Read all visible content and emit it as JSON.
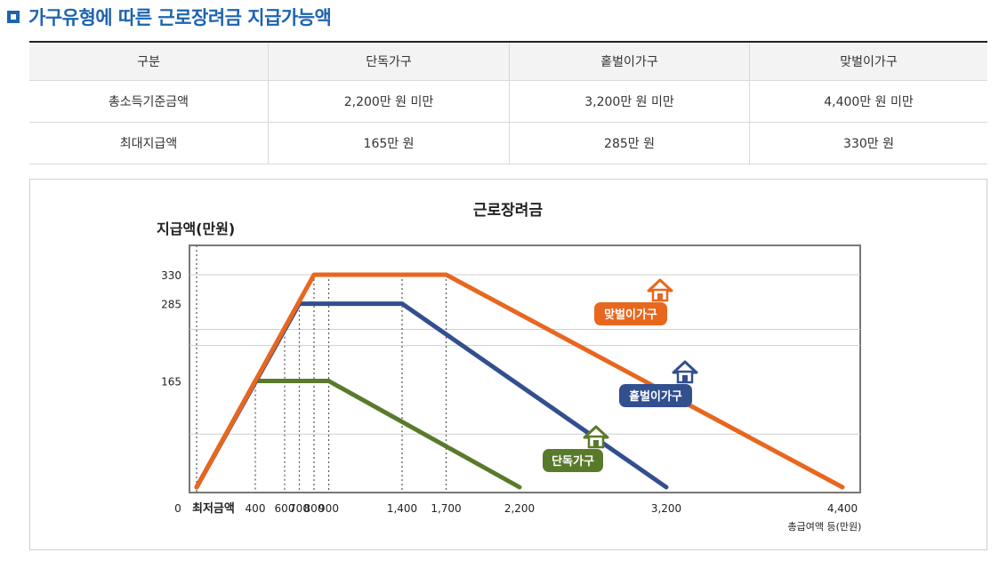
{
  "heading": {
    "title": "가구유형에 따른 근로장려금 지급가능액"
  },
  "table": {
    "headers": [
      "구분",
      "단독가구",
      "홑벌이가구",
      "맞벌이가구"
    ],
    "rows": [
      [
        "총소득기준금액",
        "2,200만 원 미만",
        "3,200만 원 미만",
        "4,400만 원 미만"
      ],
      [
        "최대지급액",
        "165만 원",
        "285만 원",
        "330만 원"
      ]
    ]
  },
  "chart_data": {
    "type": "line",
    "title": "근로장려금",
    "ylabel": "지급액(만원)",
    "xlabel": "총급여액 등(만원)",
    "x_origin_label": "최저금액",
    "origin_label": "0",
    "xlim": [
      0,
      4400
    ],
    "ylim": [
      0,
      330
    ],
    "x_ticks": [
      400,
      600,
      700,
      800,
      900,
      1400,
      1700,
      2200,
      3200,
      4400
    ],
    "x_tick_labels": [
      "400",
      "600",
      "700",
      "800",
      "900",
      "1,400",
      "1,700",
      "2,200",
      "3,200",
      "4,400"
    ],
    "y_ticks": [
      165,
      285,
      330
    ],
    "y_tick_labels": [
      "165",
      "285",
      "330"
    ],
    "grid": true,
    "series": [
      {
        "name": "맞벌이가구",
        "color": "#e8671e",
        "icon": "house-icon",
        "x": [
          0,
          800,
          1700,
          4400
        ],
        "y": [
          0,
          330,
          330,
          0
        ]
      },
      {
        "name": "홑벌이가구",
        "color": "#324f8e",
        "icon": "house-icon",
        "x": [
          0,
          700,
          1400,
          3200
        ],
        "y": [
          0,
          285,
          285,
          0
        ]
      },
      {
        "name": "단독가구",
        "color": "#5a7a2b",
        "icon": "house-icon",
        "x": [
          0,
          400,
          900,
          2200
        ],
        "y": [
          0,
          165,
          165,
          0
        ]
      }
    ]
  }
}
